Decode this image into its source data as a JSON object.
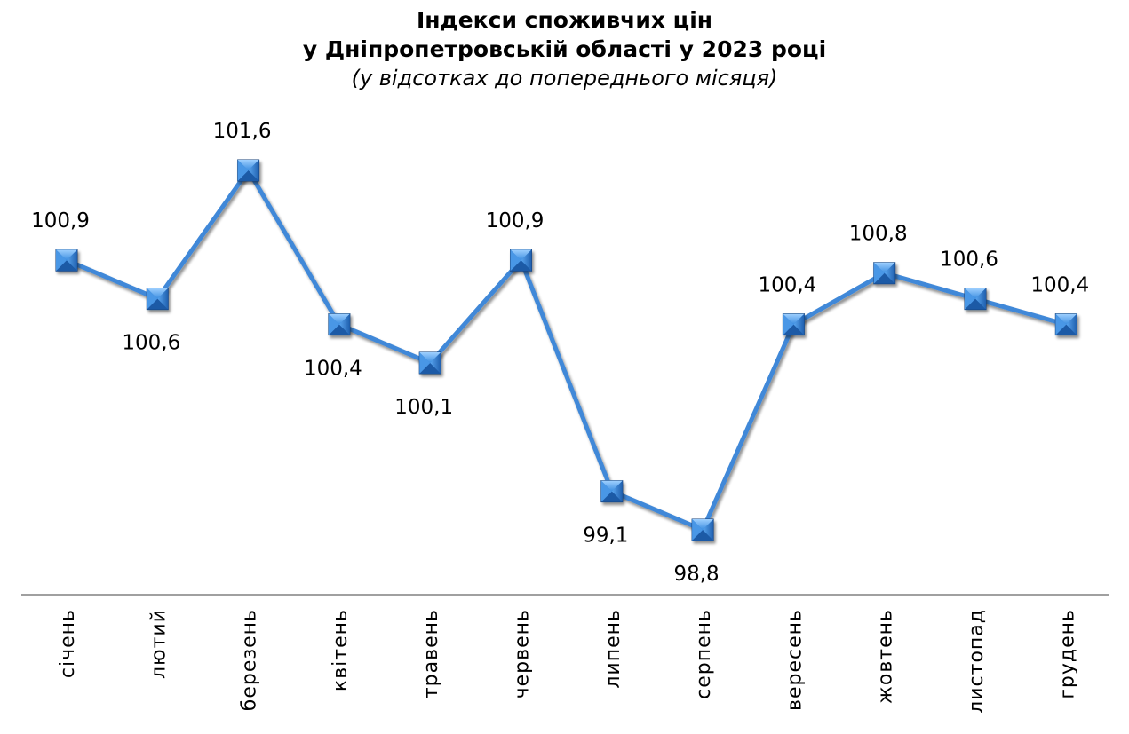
{
  "chart_data": {
    "type": "line",
    "title_lines": [
      "Індекси споживчих цін",
      "у Дніпропетровській області у 2023 році"
    ],
    "subtitle": "(у відсотках до попереднього місяця)",
    "categories": [
      "січень",
      "лютий",
      "березень",
      "квітень",
      "травень",
      "червень",
      "липень",
      "серпень",
      "вересень",
      "жовтень",
      "листопад",
      "грудень"
    ],
    "series": [
      {
        "values": [
          100.9,
          100.6,
          101.6,
          100.4,
          100.1,
          100.9,
          99.1,
          98.8,
          100.4,
          100.8,
          100.6,
          100.4
        ],
        "labels": [
          "100,9",
          "100,6",
          "101,6",
          "100,4",
          "100,1",
          "100,9",
          "99,1",
          "98,8",
          "100,4",
          "100,8",
          "100,6",
          "100,4"
        ],
        "label_positions": [
          "above",
          "below",
          "above",
          "below",
          "below",
          "above",
          "below",
          "below",
          "above",
          "above",
          "above",
          "above"
        ]
      }
    ],
    "line_color": "#3f88d8",
    "marker_color": "#2f7fd6",
    "axis_color": "#808080",
    "grid": false,
    "legend": "none"
  }
}
